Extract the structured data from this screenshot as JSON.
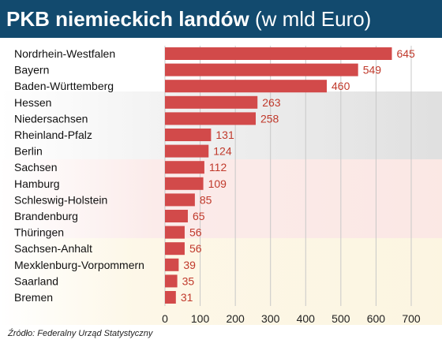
{
  "header": {
    "title_main": "PKB niemieckich landów",
    "title_sub": "(w mld Euro)"
  },
  "footer": {
    "source": "Źródło: Federalny Urząd Statystyczny"
  },
  "colors": {
    "header_bg": "#124a6e",
    "bar": "#d24a4a",
    "value_label": "#c0392b",
    "category_label": "#111111",
    "grid": "#c8c8c8"
  },
  "chart_data": {
    "type": "bar",
    "orientation": "horizontal",
    "title": "PKB niemieckich landów (w mld Euro)",
    "categories": [
      "Nordrhein-Westfalen",
      "Bayern",
      "Baden-Württemberg",
      "Hessen",
      "Niedersachsen",
      "Rheinland-Pfalz",
      "Berlin",
      "Sachsen",
      "Hamburg",
      "Schleswig-Holstein",
      "Brandenburg",
      "Thüringen",
      "Sachsen-Anhalt",
      "Mexklenburg-Vorpommern",
      "Saarland",
      "Bremen"
    ],
    "values": [
      645,
      549,
      460,
      263,
      258,
      131,
      124,
      112,
      109,
      85,
      65,
      56,
      56,
      39,
      35,
      31
    ],
    "xlim": [
      0,
      700
    ],
    "xticks": [
      0,
      100,
      200,
      300,
      400,
      500,
      600,
      700
    ],
    "grid": true,
    "data_labels": true
  }
}
